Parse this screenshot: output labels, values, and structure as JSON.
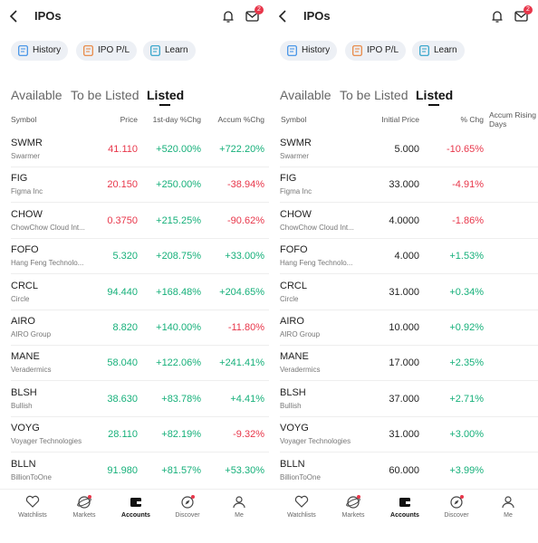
{
  "panels": [
    {
      "title": "IPOs",
      "badge": "2",
      "chips": [
        "History",
        "IPO P/L",
        "Learn"
      ],
      "tabs": [
        "Available",
        "To be Listed",
        "Listed"
      ],
      "active_tab": 2,
      "columns": [
        "Symbol",
        "Price",
        "1st-day %Chg",
        "Accum %Chg"
      ],
      "rows": [
        {
          "symbol": "SWMR",
          "name": "Swarmer",
          "cells": [
            "41.110",
            "+520.00%",
            "+722.20%"
          ],
          "price_color": "#e8364a"
        },
        {
          "symbol": "FIG",
          "name": "Figma Inc",
          "cells": [
            "20.150",
            "+250.00%",
            "-38.94%"
          ],
          "price_color": "#e8364a"
        },
        {
          "symbol": "CHOW",
          "name": "ChowChow Cloud Int...",
          "cells": [
            "0.3750",
            "+215.25%",
            "-90.62%"
          ],
          "price_color": "#e8364a"
        },
        {
          "symbol": "FOFO",
          "name": "Hang Feng Technolo...",
          "cells": [
            "5.320",
            "+208.75%",
            "+33.00%"
          ],
          "price_color": "#16b07a"
        },
        {
          "symbol": "CRCL",
          "name": "Circle",
          "cells": [
            "94.440",
            "+168.48%",
            "+204.65%"
          ],
          "price_color": "#16b07a"
        },
        {
          "symbol": "AIRO",
          "name": "AIRO Group",
          "cells": [
            "8.820",
            "+140.00%",
            "-11.80%"
          ],
          "price_color": "#16b07a"
        },
        {
          "symbol": "MANE",
          "name": "Veradermics",
          "cells": [
            "58.040",
            "+122.06%",
            "+241.41%"
          ],
          "price_color": "#16b07a"
        },
        {
          "symbol": "BLSH",
          "name": "Bullish",
          "cells": [
            "38.630",
            "+83.78%",
            "+4.41%"
          ],
          "price_color": "#16b07a"
        },
        {
          "symbol": "VOYG",
          "name": "Voyager Technologies",
          "cells": [
            "28.110",
            "+82.19%",
            "-9.32%"
          ],
          "price_color": "#16b07a"
        },
        {
          "symbol": "BLLN",
          "name": "BillionToOne",
          "cells": [
            "91.980",
            "+81.57%",
            "+53.30%"
          ],
          "price_color": "#16b07a"
        }
      ],
      "nav": [
        "Watchlists",
        "Markets",
        "Accounts",
        "Discover",
        "Me"
      ],
      "active_nav": 2
    },
    {
      "title": "IPOs",
      "badge": "2",
      "chips": [
        "History",
        "IPO P/L",
        "Learn"
      ],
      "tabs": [
        "Available",
        "To be Listed",
        "Listed"
      ],
      "active_tab": 2,
      "columns": [
        "Symbol",
        "Initial Price",
        "% Chg",
        "Accum Rising Days"
      ],
      "rows": [
        {
          "symbol": "SWMR",
          "name": "Swarmer",
          "cells": [
            "5.000",
            "-10.65%"
          ]
        },
        {
          "symbol": "FIG",
          "name": "Figma Inc",
          "cells": [
            "33.000",
            "-4.91%"
          ]
        },
        {
          "symbol": "CHOW",
          "name": "ChowChow Cloud Int...",
          "cells": [
            "4.0000",
            "-1.86%"
          ]
        },
        {
          "symbol": "FOFO",
          "name": "Hang Feng Technolo...",
          "cells": [
            "4.000",
            "+1.53%"
          ]
        },
        {
          "symbol": "CRCL",
          "name": "Circle",
          "cells": [
            "31.000",
            "+0.34%"
          ]
        },
        {
          "symbol": "AIRO",
          "name": "AIRO Group",
          "cells": [
            "10.000",
            "+0.92%"
          ]
        },
        {
          "symbol": "MANE",
          "name": "Veradermics",
          "cells": [
            "17.000",
            "+2.35%"
          ]
        },
        {
          "symbol": "BLSH",
          "name": "Bullish",
          "cells": [
            "37.000",
            "+2.71%"
          ]
        },
        {
          "symbol": "VOYG",
          "name": "Voyager Technologies",
          "cells": [
            "31.000",
            "+3.00%"
          ]
        },
        {
          "symbol": "BLLN",
          "name": "BillionToOne",
          "cells": [
            "60.000",
            "+3.99%"
          ]
        }
      ],
      "nav": [
        "Watchlists",
        "Markets",
        "Accounts",
        "Discover",
        "Me"
      ],
      "active_nav": 2
    }
  ]
}
